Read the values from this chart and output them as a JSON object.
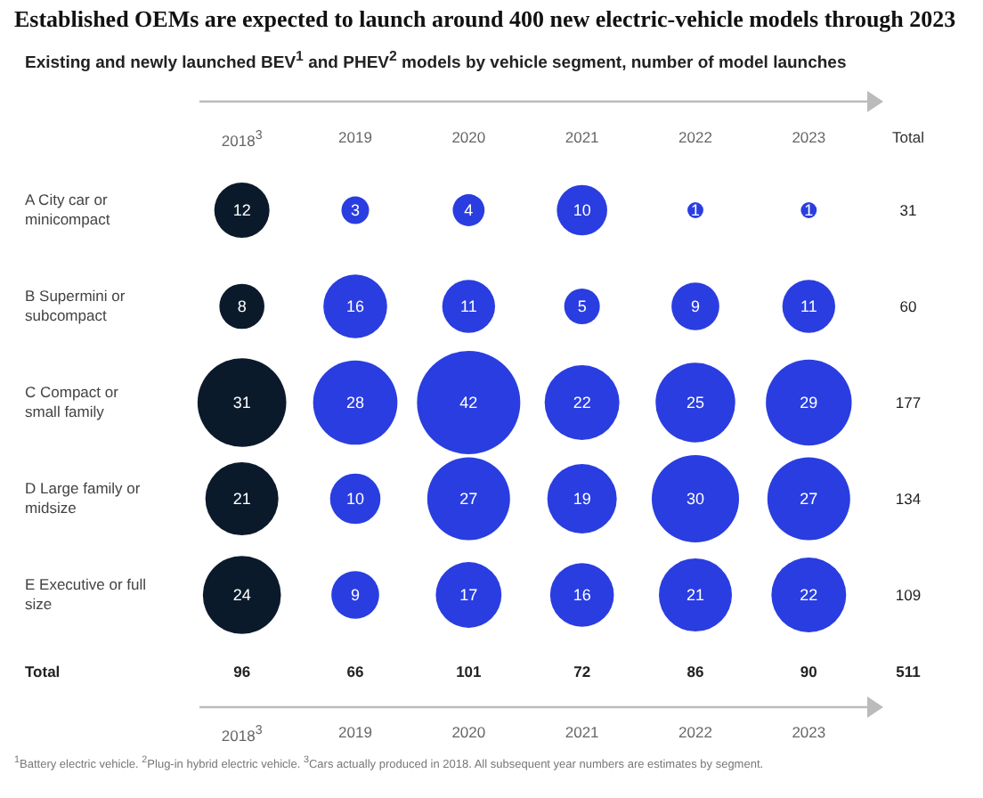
{
  "chart_data": {
    "type": "heatmap",
    "title": "Established OEMs are expected to launch around 400 new electric-vehicle models through 2023",
    "subtitle": "Existing and newly launched BEV$^{1}$ and PHEV$^{2}$ models by vehicle segment, number of model launches",
    "categories": [
      "2018$^{3}$",
      "2019",
      "2020",
      "2021",
      "2022",
      "2023"
    ],
    "y_categories": [
      "A City car or minicompact",
      "B Supermini or subcompact",
      "C Compact or small family",
      "D Large family or midsize",
      "E Executive or full size"
    ],
    "cells": [
      [
        12,
        3,
        4,
        10,
        1,
        1
      ],
      [
        8,
        16,
        11,
        5,
        9,
        11
      ],
      [
        31,
        28,
        42,
        22,
        25,
        29
      ],
      [
        21,
        10,
        27,
        19,
        30,
        27
      ],
      [
        24,
        9,
        17,
        16,
        21,
        22
      ]
    ],
    "colors": [
      "#0b1a2b",
      "#2a3de0",
      "#2a3de0",
      "#2a3de0",
      "#2a3de0",
      "#2a3de0"
    ],
    "data_labels": true,
    "y2label": "Total",
    "y2_categories": [
      "31",
      "60",
      "177",
      "134",
      "109"
    ],
    "totals": [
      "96",
      "66",
      "101",
      "72",
      "86",
      "90",
      "511"
    ],
    "annotations": [
      "Total",
      "$^{1}$Battery electric vehicle. $^{2}$Plug-in hybrid electric vehicle. $^{3}$Cars actually produced in 2018. All subsequent year numbers are estimates by segment."
    ]
  }
}
